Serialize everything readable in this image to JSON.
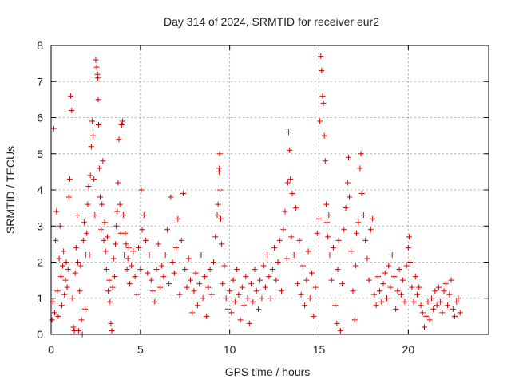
{
  "chart_data": {
    "type": "scatter",
    "title": "Day 314 of 2024, SRMTID for receiver eur2",
    "xlabel": "GPS time / hours",
    "ylabel": "SRMTID / TECUs",
    "xlim": [
      0,
      24.5
    ],
    "ylim": [
      0,
      8
    ],
    "xticks": [
      0,
      5,
      10,
      15,
      20
    ],
    "xtick_labels": [
      "0",
      "5",
      "10",
      "15",
      "20"
    ],
    "yticks": [
      0,
      1,
      2,
      3,
      4,
      5,
      6,
      7,
      8
    ],
    "ytick_labels": [
      "0",
      "1",
      "2",
      "3",
      "4",
      "5",
      "6",
      "7",
      "8"
    ],
    "grid": true,
    "marker": "+",
    "color": "#e00000",
    "series": [
      {
        "name": "SRMTID",
        "points": [
          [
            0.05,
            0.4
          ],
          [
            0.1,
            0.9
          ],
          [
            0.15,
            5.7
          ],
          [
            0.2,
            0.6
          ],
          [
            0.25,
            2.6
          ],
          [
            0.3,
            3.4
          ],
          [
            0.35,
            1.2
          ],
          [
            0.4,
            0.5
          ],
          [
            0.45,
            2.1
          ],
          [
            0.5,
            3.0
          ],
          [
            0.55,
            1.6
          ],
          [
            0.6,
            0.8
          ],
          [
            0.65,
            1.9
          ],
          [
            0.7,
            2.3
          ],
          [
            0.75,
            1.1
          ],
          [
            0.8,
            1.5
          ],
          [
            0.85,
            2.0
          ],
          [
            0.9,
            1.3
          ],
          [
            0.95,
            1.8
          ],
          [
            1.0,
            3.8
          ],
          [
            1.05,
            4.3
          ],
          [
            1.1,
            6.6
          ],
          [
            1.15,
            6.2
          ],
          [
            1.2,
            1.0
          ],
          [
            1.25,
            0.2
          ],
          [
            1.3,
            0.1
          ],
          [
            1.35,
            1.7
          ],
          [
            1.4,
            2.4
          ],
          [
            1.45,
            3.3
          ],
          [
            1.5,
            2.0
          ],
          [
            1.55,
            0.1
          ],
          [
            1.6,
            1.2
          ],
          [
            1.65,
            1.9
          ],
          [
            1.7,
            0.4
          ],
          [
            1.75,
            0.0
          ],
          [
            1.8,
            2.6
          ],
          [
            1.85,
            3.1
          ],
          [
            1.9,
            0.7
          ],
          [
            1.95,
            2.2
          ],
          [
            2.0,
            2.8
          ],
          [
            2.05,
            3.6
          ],
          [
            2.1,
            4.1
          ],
          [
            2.15,
            2.2
          ],
          [
            2.2,
            4.4
          ],
          [
            2.25,
            5.2
          ],
          [
            2.3,
            5.9
          ],
          [
            2.35,
            5.5
          ],
          [
            2.4,
            4.3
          ],
          [
            2.45,
            3.3
          ],
          [
            2.5,
            7.6
          ],
          [
            2.55,
            7.4
          ],
          [
            2.6,
            7.2
          ],
          [
            2.62,
            7.1
          ],
          [
            2.64,
            6.5
          ],
          [
            2.66,
            5.8
          ],
          [
            2.7,
            4.6
          ],
          [
            2.75,
            3.8
          ],
          [
            2.8,
            2.9
          ],
          [
            2.85,
            3.6
          ],
          [
            2.9,
            4.8
          ],
          [
            2.95,
            2.6
          ],
          [
            3.0,
            3.1
          ],
          [
            3.05,
            2.3
          ],
          [
            3.1,
            1.8
          ],
          [
            3.15,
            2.7
          ],
          [
            3.2,
            1.2
          ],
          [
            3.25,
            1.5
          ],
          [
            3.3,
            0.9
          ],
          [
            3.35,
            0.3
          ],
          [
            3.4,
            0.1
          ],
          [
            3.45,
            1.3
          ],
          [
            3.5,
            2.1
          ],
          [
            3.55,
            1.6
          ],
          [
            3.6,
            2.5
          ],
          [
            3.65,
            3.0
          ],
          [
            3.7,
            3.4
          ],
          [
            3.75,
            4.2
          ],
          [
            3.8,
            5.4
          ],
          [
            3.85,
            3.6
          ],
          [
            3.9,
            2.8
          ],
          [
            3.95,
            5.8
          ],
          [
            4.0,
            5.9
          ],
          [
            4.05,
            3.3
          ],
          [
            4.1,
            2.2
          ],
          [
            4.15,
            2.8
          ],
          [
            4.2,
            2.5
          ],
          [
            4.25,
            1.8
          ],
          [
            4.3,
            2.1
          ],
          [
            4.35,
            2.4
          ],
          [
            4.4,
            1.4
          ],
          [
            4.5,
            1.9
          ],
          [
            4.6,
            2.3
          ],
          [
            4.7,
            1.6
          ],
          [
            4.8,
            1.1
          ],
          [
            4.9,
            2.4
          ],
          [
            5.0,
            1.8
          ],
          [
            5.05,
            4.0
          ],
          [
            5.1,
            2.9
          ],
          [
            5.2,
            3.3
          ],
          [
            5.3,
            2.6
          ],
          [
            5.4,
            1.7
          ],
          [
            5.5,
            2.2
          ],
          [
            5.6,
            1.5
          ],
          [
            5.7,
            1.2
          ],
          [
            5.8,
            0.9
          ],
          [
            5.9,
            1.8
          ],
          [
            6.0,
            2.5
          ],
          [
            6.1,
            1.3
          ],
          [
            6.2,
            1.9
          ],
          [
            6.3,
            1.6
          ],
          [
            6.4,
            2.2
          ],
          [
            6.5,
            2.9
          ],
          [
            6.6,
            1.4
          ],
          [
            6.7,
            3.8
          ],
          [
            6.8,
            2.0
          ],
          [
            6.9,
            1.7
          ],
          [
            7.0,
            2.4
          ],
          [
            7.1,
            3.2
          ],
          [
            7.2,
            1.1
          ],
          [
            7.3,
            2.6
          ],
          [
            7.4,
            3.9
          ],
          [
            7.5,
            1.8
          ],
          [
            7.6,
            1.3
          ],
          [
            7.7,
            2.1
          ],
          [
            7.8,
            1.5
          ],
          [
            7.9,
            0.6
          ],
          [
            8.0,
            1.2
          ],
          [
            8.1,
            1.7
          ],
          [
            8.2,
            0.8
          ],
          [
            8.3,
            1.4
          ],
          [
            8.4,
            2.2
          ],
          [
            8.5,
            1.0
          ],
          [
            8.6,
            1.6
          ],
          [
            8.7,
            0.5
          ],
          [
            8.8,
            1.3
          ],
          [
            8.9,
            1.8
          ],
          [
            9.0,
            1.1
          ],
          [
            9.1,
            2.0
          ],
          [
            9.2,
            2.7
          ],
          [
            9.3,
            3.3
          ],
          [
            9.35,
            3.6
          ],
          [
            9.4,
            4.5
          ],
          [
            9.42,
            4.6
          ],
          [
            9.44,
            5.0
          ],
          [
            9.46,
            4.0
          ],
          [
            9.5,
            3.2
          ],
          [
            9.55,
            2.5
          ],
          [
            9.6,
            1.4
          ],
          [
            9.7,
            1.9
          ],
          [
            9.8,
            1.0
          ],
          [
            9.9,
            0.7
          ],
          [
            10.0,
            1.2
          ],
          [
            10.1,
            0.6
          ],
          [
            10.2,
            1.5
          ],
          [
            10.3,
            0.9
          ],
          [
            10.4,
            1.8
          ],
          [
            10.5,
            1.1
          ],
          [
            10.6,
            0.4
          ],
          [
            10.7,
            1.3
          ],
          [
            10.8,
            0.8
          ],
          [
            10.9,
            1.6
          ],
          [
            11.0,
            1.0
          ],
          [
            11.1,
            0.3
          ],
          [
            11.2,
            1.4
          ],
          [
            11.3,
            0.9
          ],
          [
            11.4,
            1.8
          ],
          [
            11.5,
            1.2
          ],
          [
            11.6,
            0.7
          ],
          [
            11.7,
            1.5
          ],
          [
            11.8,
            1.0
          ],
          [
            11.9,
            1.9
          ],
          [
            12.0,
            1.3
          ],
          [
            12.1,
            2.2
          ],
          [
            12.2,
            1.6
          ],
          [
            12.3,
            1.0
          ],
          [
            12.4,
            1.8
          ],
          [
            12.5,
            2.4
          ],
          [
            12.6,
            1.5
          ],
          [
            12.7,
            2.0
          ],
          [
            12.8,
            2.6
          ],
          [
            12.9,
            1.2
          ],
          [
            13.0,
            2.9
          ],
          [
            13.1,
            3.4
          ],
          [
            13.2,
            2.1
          ],
          [
            13.25,
            4.2
          ],
          [
            13.3,
            5.6
          ],
          [
            13.35,
            5.1
          ],
          [
            13.4,
            4.3
          ],
          [
            13.45,
            2.7
          ],
          [
            13.5,
            3.9
          ],
          [
            13.6,
            2.2
          ],
          [
            13.7,
            3.5
          ],
          [
            13.8,
            1.4
          ],
          [
            13.9,
            2.6
          ],
          [
            14.0,
            1.1
          ],
          [
            14.1,
            1.9
          ],
          [
            14.2,
            0.8
          ],
          [
            14.3,
            1.5
          ],
          [
            14.4,
            2.3
          ],
          [
            14.5,
            1.0
          ],
          [
            14.6,
            1.7
          ],
          [
            14.7,
            0.5
          ],
          [
            14.8,
            1.3
          ],
          [
            14.9,
            2.8
          ],
          [
            15.0,
            3.2
          ],
          [
            15.05,
            5.9
          ],
          [
            15.1,
            7.7
          ],
          [
            15.15,
            7.3
          ],
          [
            15.2,
            6.6
          ],
          [
            15.25,
            6.4
          ],
          [
            15.3,
            5.5
          ],
          [
            15.35,
            4.8
          ],
          [
            15.4,
            3.6
          ],
          [
            15.45,
            3.1
          ],
          [
            15.5,
            2.7
          ],
          [
            15.55,
            3.3
          ],
          [
            15.6,
            2.2
          ],
          [
            15.7,
            1.5
          ],
          [
            15.8,
            2.4
          ],
          [
            15.9,
            0.8
          ],
          [
            16.0,
            0.3
          ],
          [
            16.05,
            1.8
          ],
          [
            16.1,
            2.6
          ],
          [
            16.2,
            0.1
          ],
          [
            16.3,
            1.4
          ],
          [
            16.4,
            2.9
          ],
          [
            16.5,
            3.5
          ],
          [
            16.6,
            4.2
          ],
          [
            16.65,
            4.9
          ],
          [
            16.7,
            3.8
          ],
          [
            16.8,
            2.3
          ],
          [
            16.9,
            1.2
          ],
          [
            17.0,
            0.4
          ],
          [
            17.05,
            1.9
          ],
          [
            17.1,
            2.8
          ],
          [
            17.2,
            3.1
          ],
          [
            17.3,
            4.6
          ],
          [
            17.35,
            5.0
          ],
          [
            17.4,
            3.9
          ],
          [
            17.5,
            3.3
          ],
          [
            17.6,
            2.6
          ],
          [
            17.7,
            2.1
          ],
          [
            17.8,
            1.5
          ],
          [
            17.9,
            2.9
          ],
          [
            18.0,
            3.2
          ],
          [
            18.1,
            1.1
          ],
          [
            18.2,
            0.8
          ],
          [
            18.3,
            1.6
          ],
          [
            18.4,
            1.2
          ],
          [
            18.5,
            0.9
          ],
          [
            18.6,
            1.4
          ],
          [
            18.7,
            1.7
          ],
          [
            18.8,
            1.0
          ],
          [
            18.9,
            1.9
          ],
          [
            19.0,
            1.3
          ],
          [
            19.1,
            2.2
          ],
          [
            19.2,
            1.6
          ],
          [
            19.3,
            0.7
          ],
          [
            19.4,
            1.2
          ],
          [
            19.5,
            1.8
          ],
          [
            19.6,
            1.1
          ],
          [
            19.7,
            1.5
          ],
          [
            19.8,
            0.9
          ],
          [
            19.9,
            1.9
          ],
          [
            20.0,
            2.4
          ],
          [
            20.05,
            2.7
          ],
          [
            20.1,
            2.0
          ],
          [
            20.2,
            1.3
          ],
          [
            20.3,
            0.9
          ],
          [
            20.4,
            1.6
          ],
          [
            20.5,
            1.1
          ],
          [
            20.6,
            1.3
          ],
          [
            20.7,
            0.8
          ],
          [
            20.8,
            0.6
          ],
          [
            20.9,
            0.2
          ],
          [
            21.0,
            0.5
          ],
          [
            21.1,
            0.9
          ],
          [
            21.2,
            0.4
          ],
          [
            21.3,
            1.0
          ],
          [
            21.4,
            0.7
          ],
          [
            21.5,
            1.2
          ],
          [
            21.6,
            0.8
          ],
          [
            21.7,
            1.3
          ],
          [
            21.8,
            0.9
          ],
          [
            21.9,
            0.6
          ],
          [
            22.0,
            1.2
          ],
          [
            22.1,
            1.4
          ],
          [
            22.2,
            0.8
          ],
          [
            22.3,
            1.1
          ],
          [
            22.4,
            1.5
          ],
          [
            22.5,
            0.7
          ],
          [
            22.6,
            0.5
          ],
          [
            22.7,
            0.9
          ],
          [
            22.8,
            1.0
          ],
          [
            22.9,
            0.6
          ]
        ]
      }
    ]
  }
}
